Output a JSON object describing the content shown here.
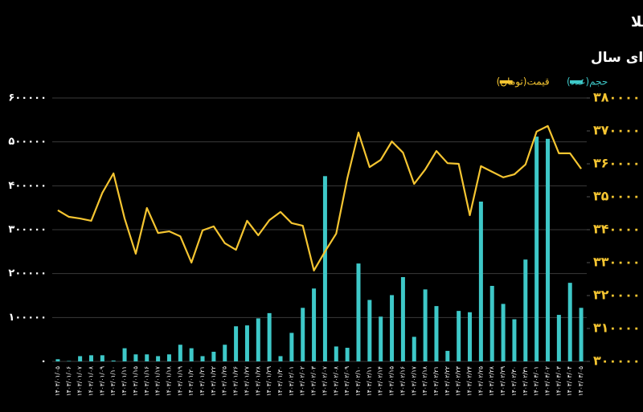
{
  "chart_data": {
    "type": "bar-line",
    "title": "معاملات روزانه گواهی سپرده کالایی شمش طلا",
    "subtitle": "از ابتدای سال",
    "categories": [
      "۱۴۰۳/۰۱/۰۵",
      "۱۴۰۳/۰۱/۰۶",
      "۱۴۰۳/۰۱/۰۷",
      "۱۴۰۳/۰۱/۰۸",
      "۱۴۰۳/۰۱/۰۹",
      "۱۴۰۳/۰۱/۱۰",
      "۱۴۰۳/۰۱/۱۱",
      "۱۴۰۳/۰۱/۱۵",
      "۱۴۰۳/۰۱/۱۶",
      "۱۴۰۳/۰۱/۱۷",
      "۱۴۰۳/۰۱/۱۸",
      "۱۴۰۳/۰۱/۱۹",
      "۱۴۰۳/۰۱/۲۰",
      "۱۴۰۳/۰۱/۲۱",
      "۱۴۰۳/۰۱/۲۲",
      "۱۴۰۳/۰۱/۲۵",
      "۱۴۰۳/۰۱/۲۶",
      "۱۴۰۳/۰۱/۲۷",
      "۱۴۰۳/۰۱/۲۸",
      "۱۴۰۳/۰۱/۲۹",
      "۱۴۰۳/۰۱/۳۰",
      "۱۴۰۳/۰۲/۰۱",
      "۱۴۰۳/۰۲/۰۲",
      "۱۴۰۳/۰۲/۰۳",
      "۱۴۰۳/۰۲/۰۷",
      "۱۴۰۳/۰۲/۰۸",
      "۱۴۰۳/۰۲/۰۹",
      "۱۴۰۳/۰۲/۱۰",
      "۱۴۰۳/۰۲/۱۱",
      "۱۴۰۳/۰۲/۱۴",
      "۱۴۰۳/۰۲/۱۵",
      "۱۴۰۳/۰۲/۱۶",
      "۱۴۰۳/۰۲/۱۷",
      "۱۴۰۳/۰۲/۱۸",
      "۱۴۰۳/۰۲/۲۱",
      "۱۴۰۳/۰۲/۲۲",
      "۱۴۰۳/۰۲/۲۳",
      "۱۴۰۳/۰۲/۲۴",
      "۱۴۰۳/۰۲/۲۵",
      "۱۴۰۳/۰۲/۲۸",
      "۱۴۰۳/۰۲/۲۹",
      "۱۴۰۳/۰۲/۳۰",
      "۱۴۰۳/۰۲/۳۱",
      "۱۴۰۳/۰۳/۰۱",
      "۱۴۰۳/۰۳/۰۲",
      "۱۴۰۳/۰۳/۰۳",
      "۱۴۰۳/۰۳/۰۴",
      "۱۴۰۳/۰۳/۰۵"
    ],
    "series": [
      {
        "name": "حجم(عدد)",
        "type": "bar",
        "color": "#3ec8c8",
        "values": [
          5000,
          1000,
          12000,
          14000,
          14000,
          2000,
          30000,
          16000,
          16000,
          12000,
          16000,
          38000,
          30000,
          12000,
          22000,
          38000,
          80000,
          82000,
          98000,
          110000,
          12000,
          65000,
          122000,
          166000,
          422000,
          34000,
          31000,
          223000,
          140000,
          102000,
          151000,
          192000,
          56000,
          164000,
          126000,
          24000,
          115000,
          112000,
          364000,
          172000,
          131000,
          96000,
          232000,
          512000,
          507000,
          106000,
          179000,
          122000
        ]
      },
      {
        "name": "قیمت(تومان)",
        "type": "line",
        "axis": "y2",
        "color": "#f5c531",
        "values": [
          345900,
          343900,
          343400,
          342700,
          351200,
          357100,
          343400,
          332700,
          346600,
          339000,
          339500,
          338000,
          330000,
          339800,
          341000,
          335900,
          333900,
          342700,
          338300,
          342900,
          345400,
          342000,
          341200,
          327600,
          333400,
          338800,
          355600,
          369500,
          359000,
          361200,
          366800,
          363400,
          353900,
          358300,
          363900,
          360200,
          360000,
          344400,
          359300,
          357600,
          355900,
          356800,
          359800,
          369800,
          371500,
          363200,
          363200,
          358500
        ]
      }
    ],
    "ylim": [
      0,
      600000
    ],
    "yticks": [
      {
        "value": 0,
        "label": "۰"
      },
      {
        "value": 100000,
        "label": "۱۰۰۰۰۰"
      },
      {
        "value": 200000,
        "label": "۲۰۰۰۰۰"
      },
      {
        "value": 300000,
        "label": "۳۰۰۰۰۰"
      },
      {
        "value": 400000,
        "label": "۴۰۰۰۰۰"
      },
      {
        "value": 500000,
        "label": "۵۰۰۰۰۰"
      },
      {
        "value": 600000,
        "label": "۶۰۰۰۰۰"
      }
    ],
    "y2lim": [
      300000,
      380000
    ],
    "y2ticks": [
      {
        "value": 300000,
        "label": "۳۰۰۰۰۰"
      },
      {
        "value": 310000,
        "label": "۳۱۰۰۰۰"
      },
      {
        "value": 320000,
        "label": "۳۲۰۰۰۰"
      },
      {
        "value": 330000,
        "label": "۳۳۰۰۰۰"
      },
      {
        "value": 340000,
        "label": "۳۴۰۰۰۰"
      },
      {
        "value": 350000,
        "label": "۳۵۰۰۰۰"
      },
      {
        "value": 360000,
        "label": "۳۶۰۰۰۰"
      },
      {
        "value": 370000,
        "label": "۳۷۰۰۰۰"
      },
      {
        "value": 380000,
        "label": "۳۸۰۰۰۰"
      }
    ],
    "grid": true,
    "legend": "top-right"
  }
}
